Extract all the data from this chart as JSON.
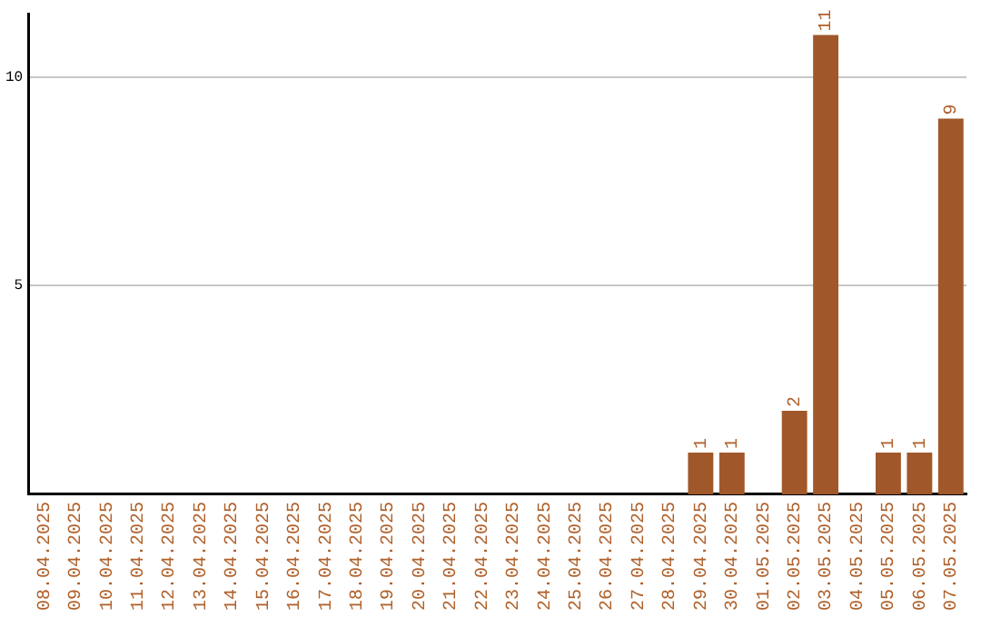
{
  "chart_data": {
    "type": "bar",
    "categories": [
      "08.04.2025",
      "09.04.2025",
      "10.04.2025",
      "11.04.2025",
      "12.04.2025",
      "13.04.2025",
      "14.04.2025",
      "15.04.2025",
      "16.04.2025",
      "17.04.2025",
      "18.04.2025",
      "19.04.2025",
      "20.04.2025",
      "21.04.2025",
      "22.04.2025",
      "23.04.2025",
      "24.04.2025",
      "25.04.2025",
      "26.04.2025",
      "27.04.2025",
      "28.04.2025",
      "29.04.2025",
      "30.04.2025",
      "01.05.2025",
      "02.05.2025",
      "03.05.2025",
      "04.05.2025",
      "05.05.2025",
      "06.05.2025",
      "07.05.2025"
    ],
    "values": [
      0,
      0,
      0,
      0,
      0,
      0,
      0,
      0,
      0,
      0,
      0,
      0,
      0,
      0,
      0,
      0,
      0,
      0,
      0,
      0,
      0,
      1,
      1,
      0,
      2,
      11,
      0,
      1,
      1,
      9
    ],
    "value_labels": [
      null,
      null,
      null,
      null,
      null,
      null,
      null,
      null,
      null,
      null,
      null,
      null,
      null,
      null,
      null,
      null,
      null,
      null,
      null,
      null,
      null,
      "1",
      "1",
      null,
      "2",
      "11",
      null,
      "1",
      "1",
      "9"
    ],
    "color": "#a0582a",
    "ylim": [
      0,
      11.5
    ],
    "yticks": [
      5,
      10
    ],
    "grid": "y",
    "legend": false
  }
}
